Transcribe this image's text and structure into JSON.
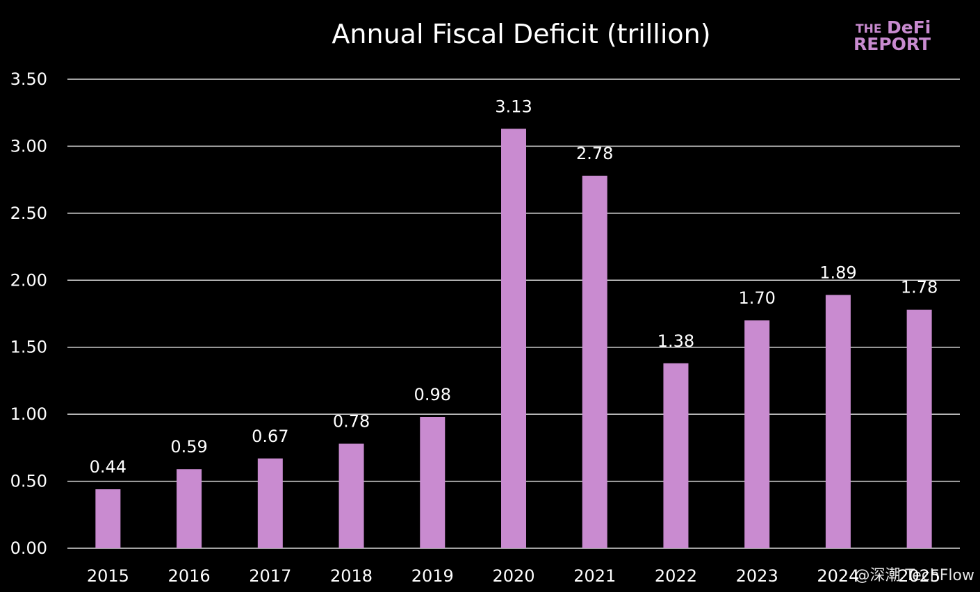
{
  "chart_data": {
    "type": "bar",
    "title": "Annual Fiscal Deficit (trillion)",
    "categories": [
      "2015",
      "2016",
      "2017",
      "2018",
      "2019",
      "2020",
      "2021",
      "2022",
      "2023",
      "2024",
      "2025"
    ],
    "values": [
      0.44,
      0.59,
      0.67,
      0.78,
      0.98,
      3.13,
      2.78,
      1.38,
      1.7,
      1.89,
      1.78
    ],
    "value_labels": [
      "0.44",
      "0.59",
      "0.67",
      "0.78",
      "0.98",
      "3.13",
      "2.78",
      "1.38",
      "1.70",
      "1.89",
      "1.78"
    ],
    "yticks": [
      0,
      0.5,
      1.0,
      1.5,
      2.0,
      2.5,
      3.0,
      3.5
    ],
    "ytick_labels": [
      "0.00",
      "0.50",
      "1.00",
      "1.50",
      "2.00",
      "2.50",
      "3.00",
      "3.50"
    ],
    "ylim": [
      0,
      3.5
    ],
    "grid": true,
    "xlabel": "",
    "ylabel": "",
    "bar_color": "#c98bd0"
  },
  "logo": {
    "line1_a": "THE",
    "line1_b": "DeFi",
    "line2": "REPORT"
  },
  "watermark": "@深潮 TechFlow"
}
